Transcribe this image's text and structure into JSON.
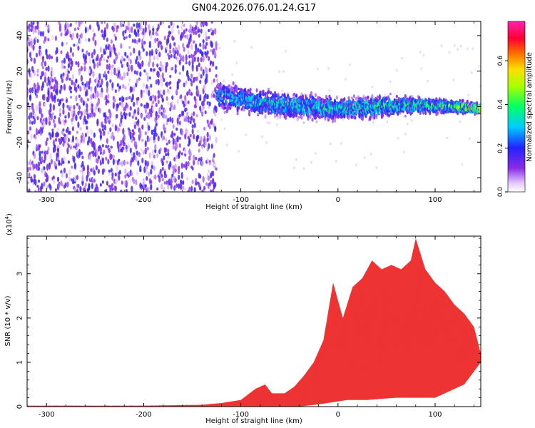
{
  "figure_title": "GN04.2026.076.01.24.G17",
  "colors": {
    "snr_line": "#ee3333",
    "axis": "#000000",
    "background": "#ffffff"
  },
  "chart_data": [
    {
      "type": "heatmap",
      "title": "GN04.2026.076.01.24.G17",
      "xlabel": "Height of straight line (km)",
      "ylabel": "Frequency (Hz)",
      "xlim": [
        -320,
        147
      ],
      "ylim": [
        -48,
        48
      ],
      "x_ticks": [
        -300,
        -200,
        -100,
        0,
        100
      ],
      "x_tick_labels": [
        "-300",
        "-200",
        "-100",
        "0",
        "100"
      ],
      "y_ticks": [
        -40,
        -20,
        0,
        20,
        40
      ],
      "y_tick_labels": [
        "-40",
        "-20",
        "0",
        "20",
        "40"
      ],
      "colorbar": {
        "label": "Normalized spectral amplitude",
        "range": [
          0,
          0.78
        ],
        "ticks": [
          0,
          0.2,
          0.4,
          0.6
        ],
        "tick_labels": [
          "0.0",
          "0.2",
          "0.4",
          "0.6"
        ],
        "colormap": "rainbow (white-violet-blue-cyan-green-yellow-red-magenta)"
      },
      "description_of_field": "Broadband low-amplitude noise spread across all frequencies below about -120 km; above -120 km the energy concentrates in a band centred near 0 Hz, narrowing toward 0 Hz with height, with peak amplitudes (~0.5-0.7) near 130-147 km.",
      "band_center_hz": [
        {
          "x": -160,
          "y": 8
        },
        {
          "x": -120,
          "y": 6
        },
        {
          "x": -80,
          "y": 2
        },
        {
          "x": -40,
          "y": 0
        },
        {
          "x": 0,
          "y": -1
        },
        {
          "x": 40,
          "y": 0
        },
        {
          "x": 80,
          "y": 1
        },
        {
          "x": 120,
          "y": 0
        },
        {
          "x": 147,
          "y": -1
        }
      ],
      "band_halfwidth_hz": [
        {
          "x": -160,
          "y": 10
        },
        {
          "x": -120,
          "y": 9
        },
        {
          "x": -80,
          "y": 8
        },
        {
          "x": -40,
          "y": 8
        },
        {
          "x": 0,
          "y": 7
        },
        {
          "x": 40,
          "y": 7
        },
        {
          "x": 80,
          "y": 5
        },
        {
          "x": 120,
          "y": 4
        },
        {
          "x": 147,
          "y": 3
        }
      ],
      "peak_amplitude": [
        {
          "x": -160,
          "y": 0.25
        },
        {
          "x": -120,
          "y": 0.3
        },
        {
          "x": -80,
          "y": 0.35
        },
        {
          "x": -40,
          "y": 0.35
        },
        {
          "x": 0,
          "y": 0.35
        },
        {
          "x": 40,
          "y": 0.4
        },
        {
          "x": 80,
          "y": 0.4
        },
        {
          "x": 120,
          "y": 0.45
        },
        {
          "x": 147,
          "y": 0.65
        }
      ]
    },
    {
      "type": "line",
      "title": "",
      "xlabel": "Height of straight line (km)",
      "ylabel": "SNR (10 * v/v)",
      "y_scale_label": "(x10",
      "y_scale_exponent": "4",
      "xlim": [
        -320,
        147
      ],
      "ylim": [
        0,
        3.85
      ],
      "x_ticks": [
        -300,
        -200,
        -100,
        0,
        100
      ],
      "x_tick_labels": [
        "-300",
        "-200",
        "-100",
        "0",
        "100"
      ],
      "y_ticks": [
        0,
        1,
        2,
        3
      ],
      "y_tick_labels": [
        "0",
        "1",
        "2",
        "3"
      ],
      "series": [
        {
          "name": "SNR",
          "values_unit": "x10^4",
          "envelope_upper": [
            {
              "x": -320,
              "y": 0.02
            },
            {
              "x": -200,
              "y": 0.02
            },
            {
              "x": -140,
              "y": 0.04
            },
            {
              "x": -120,
              "y": 0.08
            },
            {
              "x": -100,
              "y": 0.15
            },
            {
              "x": -85,
              "y": 0.4
            },
            {
              "x": -75,
              "y": 0.5
            },
            {
              "x": -68,
              "y": 0.3
            },
            {
              "x": -55,
              "y": 0.3
            },
            {
              "x": -45,
              "y": 0.45
            },
            {
              "x": -35,
              "y": 0.7
            },
            {
              "x": -25,
              "y": 1.0
            },
            {
              "x": -15,
              "y": 1.5
            },
            {
              "x": -5,
              "y": 2.8
            },
            {
              "x": 5,
              "y": 2.0
            },
            {
              "x": 15,
              "y": 2.7
            },
            {
              "x": 25,
              "y": 2.9
            },
            {
              "x": 35,
              "y": 3.3
            },
            {
              "x": 45,
              "y": 3.1
            },
            {
              "x": 55,
              "y": 3.2
            },
            {
              "x": 65,
              "y": 3.1
            },
            {
              "x": 75,
              "y": 3.3
            },
            {
              "x": 80,
              "y": 3.8
            },
            {
              "x": 90,
              "y": 3.1
            },
            {
              "x": 100,
              "y": 2.8
            },
            {
              "x": 110,
              "y": 2.6
            },
            {
              "x": 120,
              "y": 2.3
            },
            {
              "x": 130,
              "y": 2.1
            },
            {
              "x": 140,
              "y": 1.8
            },
            {
              "x": 147,
              "y": 1.2
            }
          ],
          "envelope_lower": [
            {
              "x": -320,
              "y": 0.0
            },
            {
              "x": -40,
              "y": 0.0
            },
            {
              "x": -20,
              "y": 0.05
            },
            {
              "x": -5,
              "y": 0.1
            },
            {
              "x": 10,
              "y": 0.15
            },
            {
              "x": 30,
              "y": 0.15
            },
            {
              "x": 60,
              "y": 0.2
            },
            {
              "x": 100,
              "y": 0.2
            },
            {
              "x": 130,
              "y": 0.5
            },
            {
              "x": 147,
              "y": 1.0
            }
          ]
        }
      ]
    }
  ]
}
